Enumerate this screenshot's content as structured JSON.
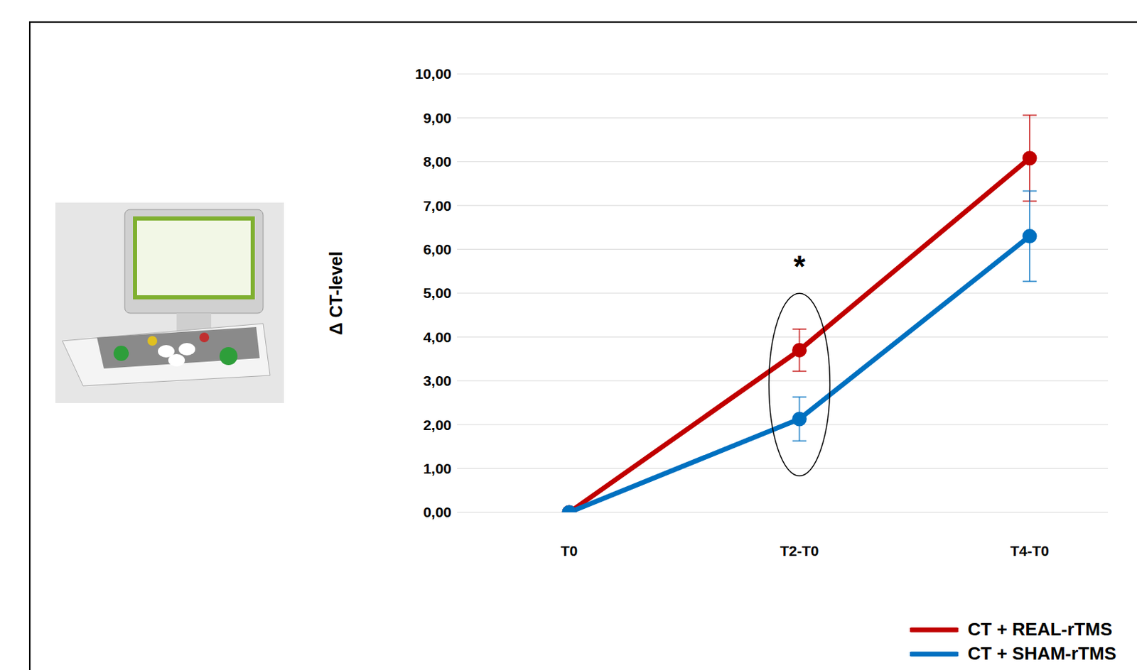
{
  "chart_data": {
    "type": "line",
    "categories": [
      "T0",
      "T2-T0",
      "T4-T0"
    ],
    "y_label": "Δ CT-level",
    "ylim": [
      0,
      10
    ],
    "yticks": [
      {
        "value": 0,
        "label": "0,00"
      },
      {
        "value": 1,
        "label": "1,00"
      },
      {
        "value": 2,
        "label": "2,00"
      },
      {
        "value": 3,
        "label": "3,00"
      },
      {
        "value": 4,
        "label": "4,00"
      },
      {
        "value": 5,
        "label": "5,00"
      },
      {
        "value": 6,
        "label": "6,00"
      },
      {
        "value": 7,
        "label": "7,00"
      },
      {
        "value": 8,
        "label": "8,00"
      },
      {
        "value": 9,
        "label": "9,00"
      },
      {
        "value": 10,
        "label": "10,00"
      }
    ],
    "grid": true,
    "legend": "lower right",
    "series": [
      {
        "name": "CT + REAL-rTMS",
        "color": "#c00000",
        "values": [
          0,
          3.7,
          8.08
        ],
        "errors": [
          0,
          0.48,
          0.98
        ]
      },
      {
        "name": "CT + SHAM-rTMS",
        "color": "#0070c0",
        "values": [
          0,
          2.13,
          6.3
        ],
        "errors": [
          0,
          0.5,
          1.03
        ]
      }
    ],
    "annotations": [
      {
        "text": "*",
        "x": "T2-T0",
        "y": 5.6
      }
    ]
  }
}
